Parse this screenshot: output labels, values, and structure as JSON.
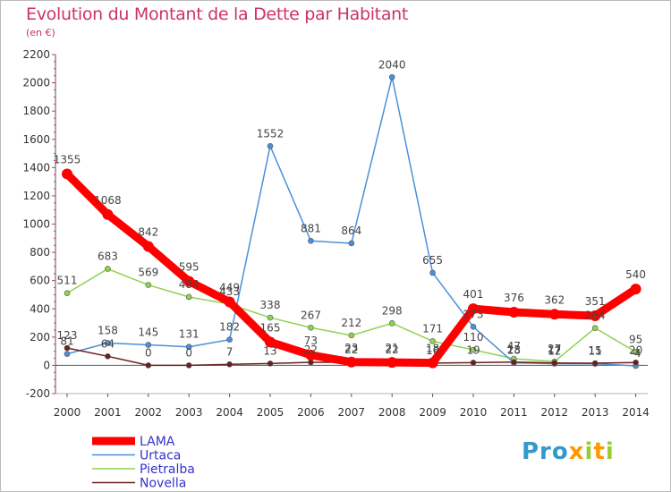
{
  "title": "Evolution du Montant de la Dette par Habitant",
  "subtitle": "(en €)",
  "logo": "Proxiti",
  "chart_data": {
    "type": "line",
    "title": "Evolution du Montant de la Dette par Habitant",
    "subtitle": "(en €)",
    "x": [
      "2000",
      "2001",
      "2002",
      "2003",
      "2004",
      "2005",
      "2006",
      "2007",
      "2008",
      "2009",
      "2010",
      "2011",
      "2012",
      "2013",
      "2014"
    ],
    "ylim": [
      -200,
      2200
    ],
    "yticks": [
      "-200",
      "0",
      "200",
      "400",
      "600",
      "800",
      "1000",
      "1200",
      "1400",
      "1600",
      "1800",
      "2000",
      "2200"
    ],
    "grid": false,
    "legend_position": "bottom-left",
    "series": [
      {
        "name": "LAMA",
        "color": "#ff0000",
        "values": [
          1355,
          1068,
          842,
          595,
          449,
          165,
          73,
          23,
          21,
          18,
          401,
          376,
          362,
          351,
          540
        ]
      },
      {
        "name": "Urtaca",
        "color": "#4a90d9",
        "values": [
          81,
          158,
          145,
          131,
          182,
          1552,
          881,
          864,
          2040,
          655,
          273,
          18,
          12,
          11,
          -4
        ]
      },
      {
        "name": "Pietralba",
        "color": "#8ed34f",
        "values": [
          511,
          683,
          569,
          484,
          433,
          338,
          267,
          212,
          298,
          171,
          110,
          47,
          27,
          264,
          95
        ]
      },
      {
        "name": "Novella",
        "color": "#6b1f1f",
        "values": [
          123,
          64,
          0,
          0,
          7,
          13,
          22,
          22,
          22,
          16,
          19,
          23,
          17,
          15,
          20
        ]
      }
    ],
    "data_labels": [
      {
        "series": 0,
        "labels": [
          "1355",
          "1068",
          "842",
          "595",
          "449",
          "165",
          "73",
          "23",
          "21",
          "18",
          "401",
          "376",
          "362",
          "351",
          "540"
        ]
      },
      {
        "series": 1,
        "labels": [
          "81",
          "158",
          "145",
          "131",
          "182",
          "1552",
          "881",
          "864",
          "2040",
          "655",
          "273",
          "18",
          "12",
          "11",
          "-4"
        ]
      },
      {
        "series": 2,
        "labels": [
          "511",
          "683",
          "569",
          "484",
          "433",
          "338",
          "267",
          "212",
          "298",
          "171",
          "110",
          "47",
          "27",
          "264",
          "95"
        ]
      },
      {
        "series": 3,
        "labels": [
          "123",
          "64",
          "0",
          "0",
          "7",
          "13",
          "22",
          "22",
          "22",
          "16",
          "19",
          "23",
          "17",
          "15",
          "20"
        ]
      }
    ]
  }
}
